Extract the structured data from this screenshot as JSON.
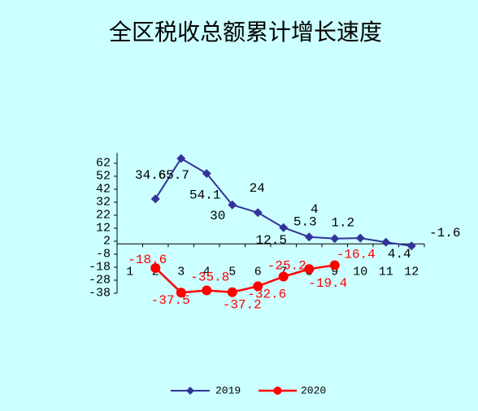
{
  "colors": {
    "background": "#CCFFFF",
    "axis": "#000000",
    "text": "#000000"
  },
  "chart_data": {
    "type": "line",
    "title": "全区税收总额累计增长速度",
    "categories": [
      "1",
      "2",
      "3",
      "4",
      "5",
      "6",
      "7",
      "8",
      "9",
      "10",
      "11",
      "12"
    ],
    "ylim": [
      -38,
      70
    ],
    "yticks": [
      62,
      52,
      42,
      32,
      22,
      12,
      2,
      -8,
      -18,
      -28,
      -38
    ],
    "grid": false,
    "legend": "bottom",
    "series": [
      {
        "name": "2019",
        "values": [
          null,
          34.6,
          65.7,
          54.1,
          30,
          24,
          12.5,
          5.3,
          4,
          4.4,
          1.2,
          -1.6
        ],
        "color": "#333399",
        "label_color": "#000000",
        "marker": "diamond"
      },
      {
        "name": "2020",
        "values": [
          null,
          -18.6,
          -37.5,
          -35.8,
          -37.2,
          -32.6,
          -25.2,
          -19.4,
          -16.4,
          null,
          null,
          null
        ],
        "color": "#FF0000",
        "label_color": "#FF0000",
        "marker": "circle"
      }
    ]
  }
}
